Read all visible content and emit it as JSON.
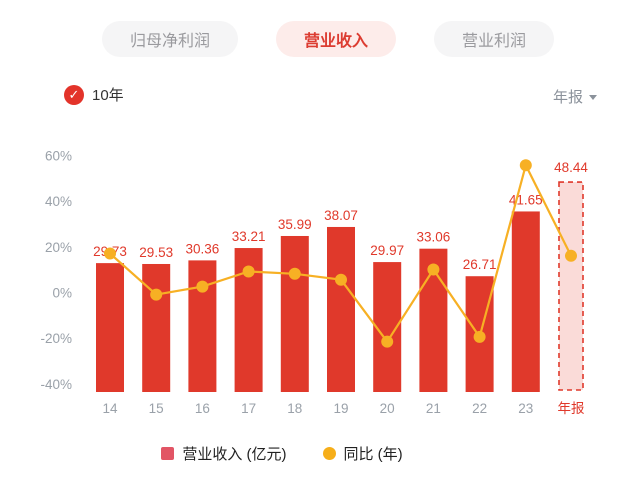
{
  "tabs": [
    {
      "label": "归母净利润",
      "selected": false
    },
    {
      "label": "营业收入",
      "selected": true
    },
    {
      "label": "营业利润",
      "selected": false
    }
  ],
  "controls": {
    "range_label": "10年",
    "range_checked": true,
    "period_label": "年报"
  },
  "colors": {
    "bar": "#e0392b",
    "value_label": "#e0392b",
    "forecast_fill": "#fadbd8",
    "forecast_border": "#e0392b",
    "line": "#f7b024",
    "axis_text": "#9aa1a9",
    "forecast_axis_text": "#e0392b",
    "tab_selected_bg": "#fdecea",
    "tab_selected_text": "#dc3c31",
    "check_circle": "#e3332a",
    "legend_bar_swatch": "#e25565",
    "legend_line_swatch": "#f6ae19"
  },
  "chart_data": {
    "type": "bar",
    "title": "",
    "categories": [
      "14",
      "15",
      "16",
      "17",
      "18",
      "19",
      "20",
      "21",
      "22",
      "23",
      "年报"
    ],
    "forecast_index": 10,
    "series": [
      {
        "name": "营业收入 (亿元)",
        "type": "bar",
        "values": [
          29.73,
          29.53,
          30.36,
          33.21,
          35.99,
          38.07,
          29.97,
          33.06,
          26.71,
          41.65,
          48.44
        ]
      },
      {
        "name": "同比 (年)",
        "type": "line",
        "unit": "%",
        "values": [
          17.3,
          -0.7,
          2.8,
          9.4,
          8.4,
          5.8,
          -21.3,
          10.3,
          -19.2,
          55.9,
          16.3
        ]
      }
    ],
    "y_axis": {
      "ticks": [
        "60%",
        "40%",
        "20%",
        "0%",
        "-20%",
        "-40%"
      ],
      "tick_values": [
        60,
        40,
        20,
        0,
        -20,
        -40
      ],
      "range": [
        -40,
        60
      ],
      "grid": false
    },
    "legend_position": "bottom"
  }
}
